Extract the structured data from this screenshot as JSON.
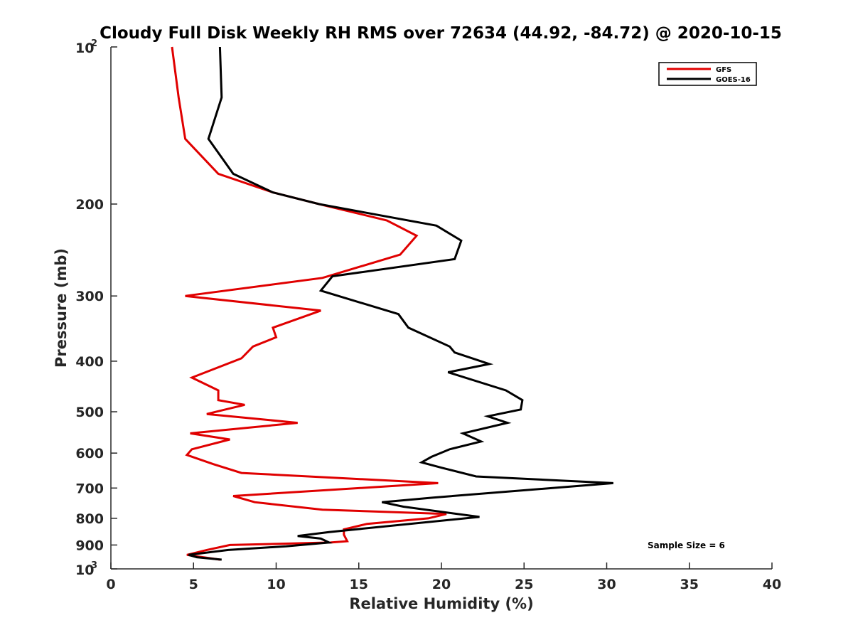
{
  "chart_data": {
    "type": "line",
    "title": "Cloudy Full Disk Weekly RH RMS over 72634 (44.92, -84.72) @ 2020-10-15",
    "xlabel": "Relative Humidity (%)",
    "ylabel": "Pressure (mb)",
    "xlim": [
      0,
      40
    ],
    "ylim": [
      100,
      1000
    ],
    "y_scale": "log",
    "y_reversed": true,
    "x_ticks": [
      "0",
      "5",
      "10",
      "15",
      "20",
      "25",
      "30",
      "35",
      "40"
    ],
    "y_ticks": [
      {
        "p": 100,
        "base": "10",
        "sup": "2"
      },
      {
        "p": 200,
        "label": "200"
      },
      {
        "p": 300,
        "label": "300"
      },
      {
        "p": 400,
        "label": "400"
      },
      {
        "p": 500,
        "label": "500"
      },
      {
        "p": 600,
        "label": "600"
      },
      {
        "p": 700,
        "label": "700"
      },
      {
        "p": 800,
        "label": "800"
      },
      {
        "p": 900,
        "label": "900"
      },
      {
        "p": 1000,
        "base": "10",
        "sup": "3"
      }
    ],
    "legend_position": "top-right",
    "grid": false,
    "annotation": "Sample Size = 6",
    "series": [
      {
        "name": "GFS",
        "color": "#e00000",
        "points": [
          [
            3.7,
            100
          ],
          [
            4.1,
            125
          ],
          [
            4.5,
            150
          ],
          [
            6.5,
            175
          ],
          [
            9.8,
            190
          ],
          [
            12.6,
            200
          ],
          [
            16.7,
            215
          ],
          [
            18.5,
            230
          ],
          [
            17.5,
            250
          ],
          [
            12.8,
            277
          ],
          [
            4.5,
            300
          ],
          [
            12.7,
            320
          ],
          [
            9.8,
            345
          ],
          [
            10,
            360
          ],
          [
            8.6,
            375
          ],
          [
            7.9,
            395
          ],
          [
            4.9,
            430
          ],
          [
            6.5,
            455
          ],
          [
            6.5,
            475
          ],
          [
            8.1,
            485
          ],
          [
            5.8,
            505
          ],
          [
            11.3,
            525
          ],
          [
            4.8,
            550
          ],
          [
            7.2,
            565
          ],
          [
            4.9,
            590
          ],
          [
            4.6,
            605
          ],
          [
            6.2,
            630
          ],
          [
            7.9,
            655
          ],
          [
            19.8,
            685
          ],
          [
            7.4,
            725
          ],
          [
            8.7,
            745
          ],
          [
            12.8,
            770
          ],
          [
            20.3,
            785
          ],
          [
            19.2,
            800
          ],
          [
            15.5,
            820
          ],
          [
            14.1,
            840
          ],
          [
            14.1,
            860
          ],
          [
            14.3,
            885
          ],
          [
            13.3,
            890
          ],
          [
            7.2,
            900
          ],
          [
            5.8,
            920
          ],
          [
            4.6,
            940
          ],
          [
            6.6,
            960
          ]
        ]
      },
      {
        "name": "GOES-16",
        "color": "#000000",
        "points": [
          [
            6.6,
            100
          ],
          [
            6.7,
            125
          ],
          [
            5.9,
            150
          ],
          [
            7.4,
            175
          ],
          [
            9.8,
            190
          ],
          [
            12.6,
            200
          ],
          [
            19.7,
            220
          ],
          [
            21.2,
            235
          ],
          [
            20.8,
            255
          ],
          [
            13.4,
            275
          ],
          [
            12.7,
            293
          ],
          [
            17.4,
            325
          ],
          [
            18,
            345
          ],
          [
            20.5,
            375
          ],
          [
            20.8,
            385
          ],
          [
            22.9,
            405
          ],
          [
            20.4,
            420
          ],
          [
            23.9,
            455
          ],
          [
            24.9,
            475
          ],
          [
            24.8,
            495
          ],
          [
            22.8,
            510
          ],
          [
            24,
            525
          ],
          [
            21.3,
            550
          ],
          [
            22.4,
            570
          ],
          [
            20.5,
            590
          ],
          [
            19.4,
            610
          ],
          [
            18.8,
            625
          ],
          [
            20,
            640
          ],
          [
            22.1,
            665
          ],
          [
            30.4,
            685
          ],
          [
            19.5,
            730
          ],
          [
            16.4,
            745
          ],
          [
            17.7,
            760
          ],
          [
            22.3,
            795
          ],
          [
            13.2,
            850
          ],
          [
            11.3,
            865
          ],
          [
            12.7,
            875
          ],
          [
            13.2,
            890
          ],
          [
            10.6,
            905
          ],
          [
            7.1,
            920
          ],
          [
            4.7,
            940
          ],
          [
            5.2,
            950
          ],
          [
            6.7,
            960
          ]
        ]
      }
    ]
  }
}
